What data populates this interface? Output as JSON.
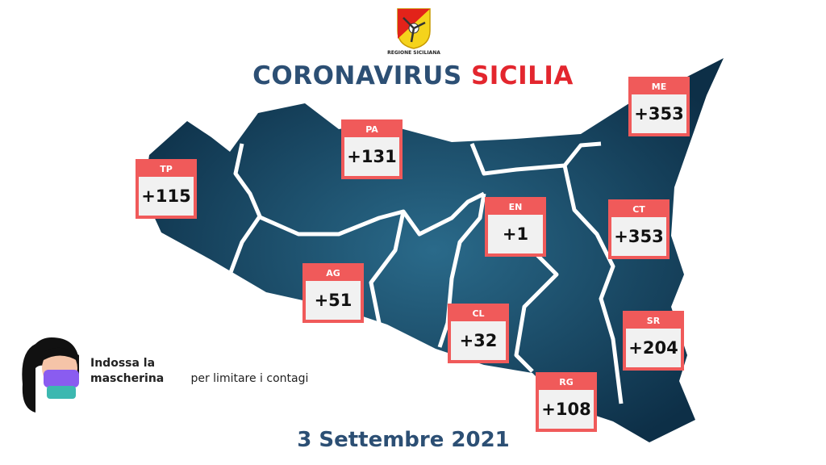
{
  "logo": {
    "caption": "REGIONE SICILIANA",
    "icon": "trinacria-coat-of-arms"
  },
  "title": {
    "part1": "CORONAVIRUS",
    "part2": "SICILIA",
    "color1": "#2c4f74",
    "color2": "#e3262e"
  },
  "provinces": [
    {
      "code": "TP",
      "value": "+115"
    },
    {
      "code": "PA",
      "value": "+131"
    },
    {
      "code": "ME",
      "value": "+353"
    },
    {
      "code": "EN",
      "value": "+1"
    },
    {
      "code": "CT",
      "value": "+353"
    },
    {
      "code": "AG",
      "value": "+51"
    },
    {
      "code": "CL",
      "value": "+32"
    },
    {
      "code": "SR",
      "value": "+204"
    },
    {
      "code": "RG",
      "value": "+108"
    }
  ],
  "colors": {
    "box": "#f05a5a",
    "map": "#123a55",
    "border": "#ffffff"
  },
  "message": {
    "bold": "Indossa la mascherina",
    "rest": "per limitare i contagi",
    "icon": "woman-with-mask"
  },
  "date": "3 Settembre 2021"
}
